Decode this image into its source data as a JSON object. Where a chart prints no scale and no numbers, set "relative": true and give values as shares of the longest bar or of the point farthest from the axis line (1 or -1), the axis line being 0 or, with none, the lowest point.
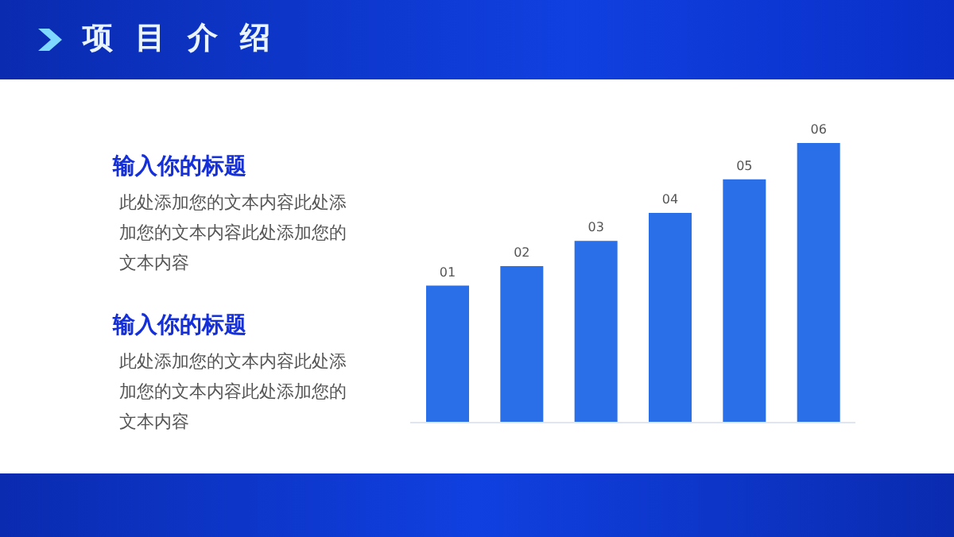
{
  "chart_data": {
    "type": "bar",
    "title": "项目介绍",
    "relative": true,
    "categories": [
      null,
      null,
      null,
      null,
      null,
      null
    ],
    "values": [
      0.49,
      0.56,
      0.65,
      0.75,
      0.87,
      1
    ],
    "color": "#2a6ee8",
    "annotations": [
      {
        "text": "01"
      },
      {
        "text": "02"
      },
      {
        "text": "03"
      },
      {
        "text": "04"
      },
      {
        "text": "05"
      },
      {
        "text": "06"
      },
      "输入你的标题",
      "此处添加您的文本内容此处添加您的文本内容此处添加您的文本内容",
      "输入你的标题",
      "此处添加您的文本内容此处添加您的文本内容此处添加您的文本内容"
    ]
  }
}
